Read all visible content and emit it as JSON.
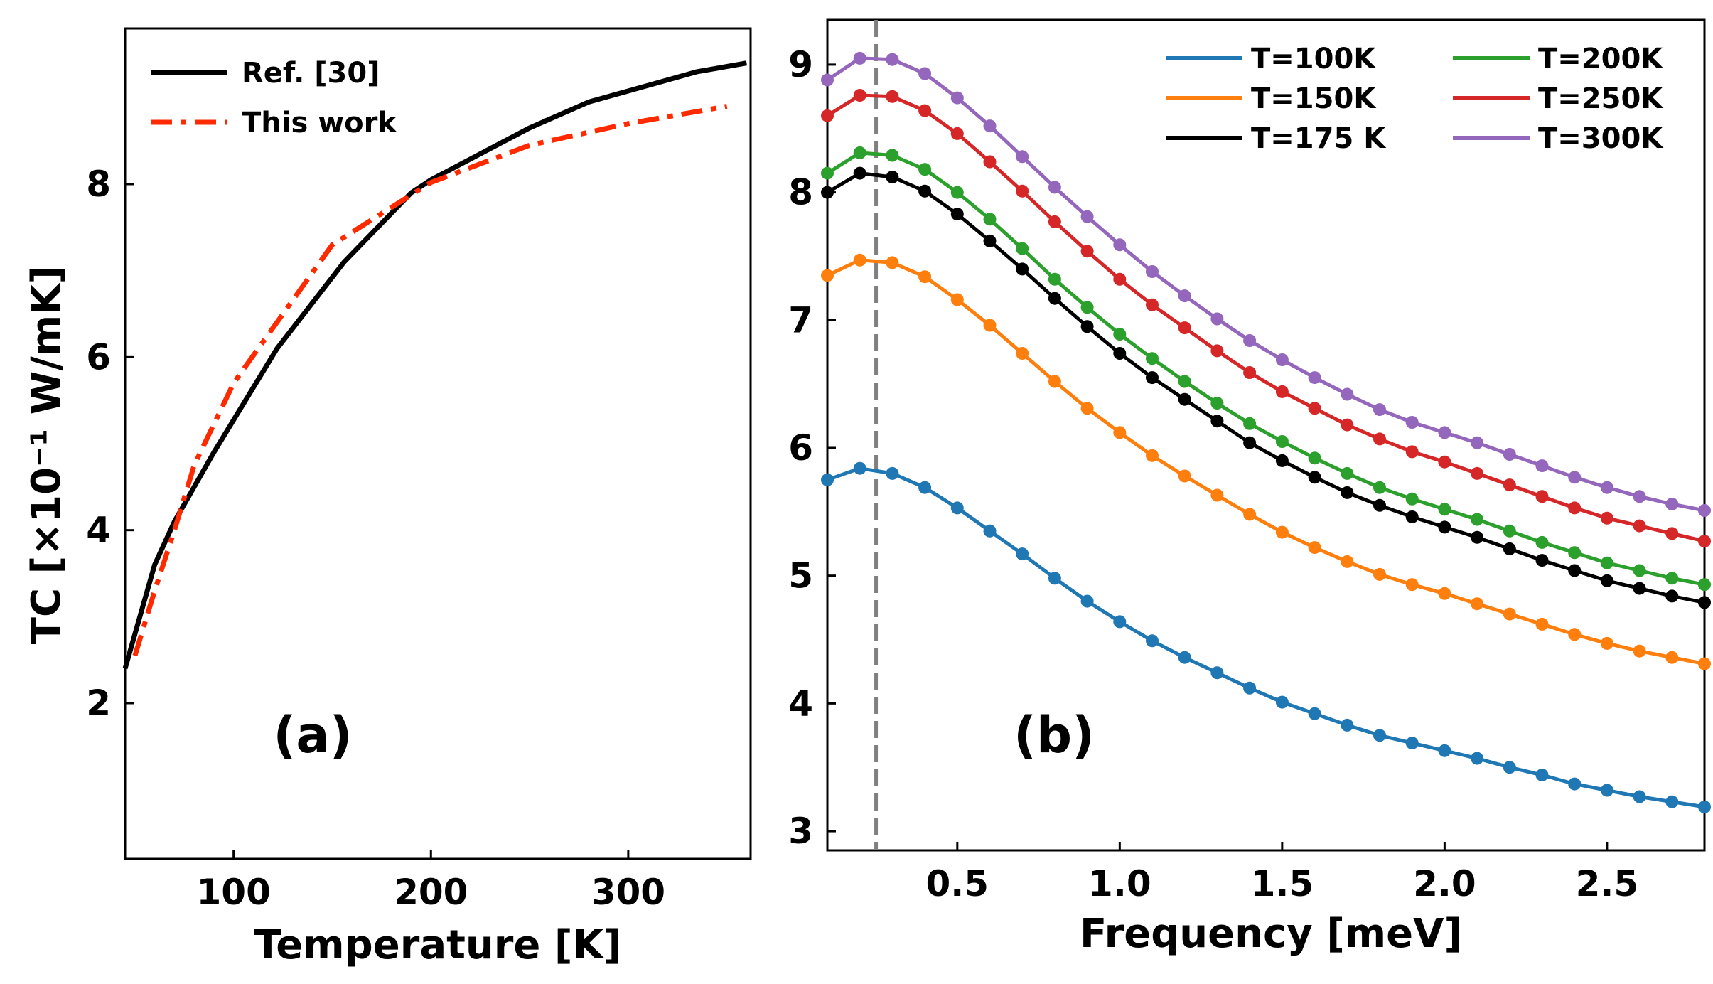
{
  "chart_data": [
    {
      "type": "line",
      "panel_label": "(a)",
      "xlabel": "Temperature [K]",
      "ylabel": "TC [×10⁻¹ W/mK]",
      "xlim": [
        45,
        362
      ],
      "ylim": [
        0.2,
        9.8
      ],
      "xticks": [
        100,
        200,
        300
      ],
      "yticks": [
        2,
        4,
        6,
        8
      ],
      "xtick_labels": [
        "100",
        "200",
        "300"
      ],
      "ytick_labels": [
        "2",
        "4",
        "6",
        "8"
      ],
      "legend_position": "top-left",
      "series": [
        {
          "name": "Ref. [30]",
          "color": "#000000",
          "style": "solid",
          "x": [
            45,
            60,
            70,
            90,
            122,
            156,
            190,
            200,
            250,
            280,
            335,
            360
          ],
          "y": [
            2.4,
            3.6,
            4.1,
            4.9,
            6.1,
            7.1,
            7.9,
            8.05,
            8.65,
            8.95,
            9.3,
            9.4
          ]
        },
        {
          "name": "This work",
          "color": "#ff2a00",
          "style": "dashdot",
          "x": [
            50,
            60,
            70,
            80,
            100,
            150,
            200,
            250,
            300,
            350
          ],
          "y": [
            2.55,
            3.3,
            4.0,
            4.75,
            5.7,
            7.3,
            8.02,
            8.45,
            8.7,
            8.9
          ]
        }
      ]
    },
    {
      "type": "line",
      "panel_label": "(b)",
      "xlabel": "Frequency [meV]",
      "ylabel": "",
      "xlim": [
        0.1,
        2.8
      ],
      "ylim": [
        2.85,
        9.35
      ],
      "xticks": [
        0.5,
        1.0,
        1.5,
        2.0,
        2.5
      ],
      "yticks": [
        3,
        4,
        5,
        6,
        7,
        8,
        9
      ],
      "xtick_labels": [
        "0.5",
        "1.0",
        "1.5",
        "2.0",
        "2.5"
      ],
      "ytick_labels": [
        "3",
        "4",
        "5",
        "6",
        "7",
        "8",
        "9"
      ],
      "vline_x": 0.25,
      "vline_color": "#808080",
      "legend_position": "top-right",
      "x": [
        0.1,
        0.2,
        0.3,
        0.4,
        0.5,
        0.6,
        0.7,
        0.8,
        0.9,
        1.0,
        1.1,
        1.2,
        1.3,
        1.4,
        1.5,
        1.6,
        1.7,
        1.8,
        1.9,
        2.0,
        2.1,
        2.2,
        2.3,
        2.4,
        2.5,
        2.6,
        2.7,
        2.8
      ],
      "series": [
        {
          "name": "T=100K",
          "color": "#1f77b4",
          "y": [
            5.75,
            5.84,
            5.8,
            5.69,
            5.53,
            5.35,
            5.17,
            4.98,
            4.8,
            4.64,
            4.49,
            4.36,
            4.24,
            4.12,
            4.01,
            3.92,
            3.83,
            3.75,
            3.69,
            3.63,
            3.57,
            3.5,
            3.44,
            3.37,
            3.32,
            3.27,
            3.23,
            3.19
          ]
        },
        {
          "name": "T=150K",
          "color": "#ff7f0e",
          "y": [
            7.35,
            7.47,
            7.45,
            7.34,
            7.16,
            6.96,
            6.74,
            6.52,
            6.31,
            6.12,
            5.94,
            5.78,
            5.63,
            5.48,
            5.34,
            5.22,
            5.11,
            5.01,
            4.93,
            4.86,
            4.78,
            4.7,
            4.62,
            4.54,
            4.47,
            4.41,
            4.36,
            4.31
          ]
        },
        {
          "name": "T=175 K",
          "color": "#000000",
          "y": [
            8.0,
            8.15,
            8.12,
            8.01,
            7.83,
            7.62,
            7.4,
            7.17,
            6.95,
            6.74,
            6.55,
            6.38,
            6.21,
            6.04,
            5.9,
            5.77,
            5.65,
            5.55,
            5.46,
            5.38,
            5.3,
            5.21,
            5.12,
            5.04,
            4.96,
            4.9,
            4.84,
            4.79
          ]
        },
        {
          "name": "T=200K",
          "color": "#2ca02c",
          "y": [
            8.15,
            8.31,
            8.29,
            8.18,
            8.0,
            7.79,
            7.56,
            7.32,
            7.1,
            6.89,
            6.7,
            6.52,
            6.35,
            6.19,
            6.05,
            5.92,
            5.8,
            5.69,
            5.6,
            5.52,
            5.44,
            5.35,
            5.26,
            5.18,
            5.1,
            5.04,
            4.98,
            4.93
          ]
        },
        {
          "name": "T=250K",
          "color": "#d62728",
          "y": [
            8.6,
            8.76,
            8.75,
            8.64,
            8.46,
            8.24,
            8.01,
            7.77,
            7.54,
            7.32,
            7.12,
            6.94,
            6.76,
            6.59,
            6.44,
            6.31,
            6.18,
            6.07,
            5.97,
            5.89,
            5.8,
            5.71,
            5.62,
            5.53,
            5.45,
            5.39,
            5.33,
            5.27
          ]
        },
        {
          "name": "T=300K",
          "color": "#9467bd",
          "y": [
            8.88,
            9.05,
            9.04,
            8.93,
            8.74,
            8.52,
            8.28,
            8.04,
            7.81,
            7.59,
            7.38,
            7.19,
            7.01,
            6.84,
            6.69,
            6.55,
            6.42,
            6.3,
            6.2,
            6.12,
            6.04,
            5.95,
            5.86,
            5.77,
            5.69,
            5.62,
            5.56,
            5.51
          ]
        }
      ]
    }
  ]
}
